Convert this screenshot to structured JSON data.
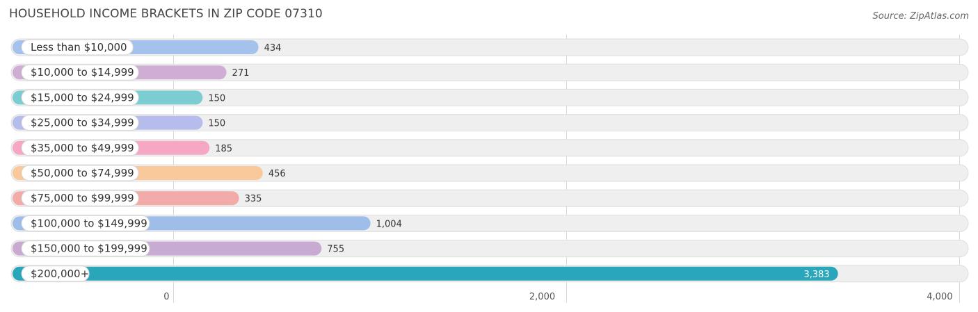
{
  "header": {
    "title": "HOUSEHOLD INCOME BRACKETS IN ZIP CODE 07310",
    "source": "Source: ZipAtlas.com"
  },
  "chart_data": {
    "type": "bar",
    "orientation": "horizontal",
    "title": "HOUSEHOLD INCOME BRACKETS IN ZIP CODE 07310",
    "categories": [
      "Less than $10,000",
      "$10,000 to $14,999",
      "$15,000 to $24,999",
      "$25,000 to $34,999",
      "$35,000 to $49,999",
      "$50,000 to $74,999",
      "$75,000 to $99,999",
      "$100,000 to $149,999",
      "$150,000 to $199,999",
      "$200,000+"
    ],
    "values": [
      434,
      271,
      150,
      150,
      185,
      456,
      335,
      1004,
      755,
      3383
    ],
    "value_labels": [
      "434",
      "271",
      "150",
      "150",
      "185",
      "456",
      "335",
      "1,004",
      "755",
      "3,383"
    ],
    "colors": [
      "#a4c2ec",
      "#cfaed3",
      "#7ccdd2",
      "#b6bdec",
      "#f6a7c3",
      "#f9c99c",
      "#f2aba8",
      "#9ebde9",
      "#c9aad2",
      "#2aa6bb"
    ],
    "xlim": [
      0,
      4000
    ],
    "xticks": [
      0,
      2000,
      4000
    ],
    "xtick_labels": [
      "0",
      "2,000",
      "4,000"
    ],
    "grid": true,
    "legend": "none"
  }
}
